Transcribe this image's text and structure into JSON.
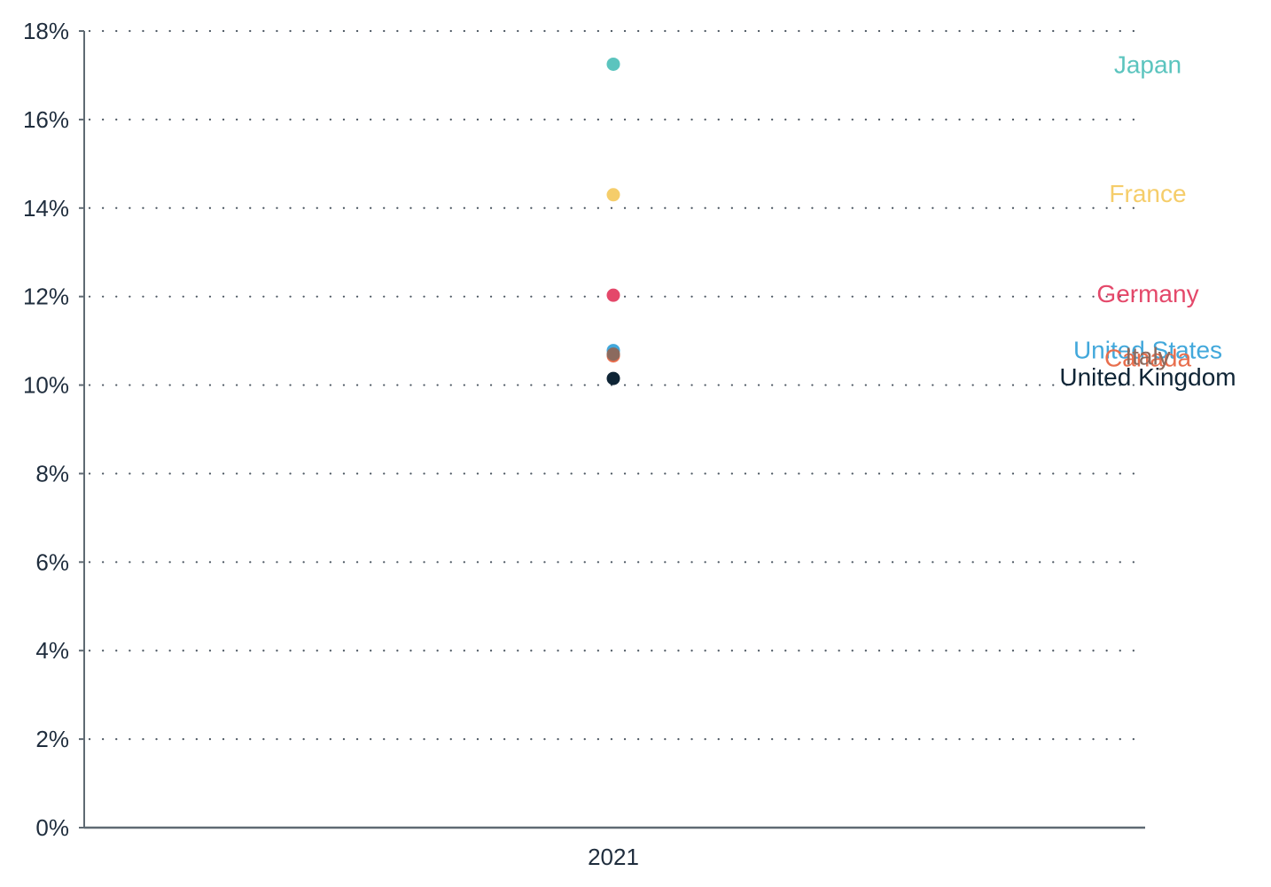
{
  "chart_data": {
    "type": "scatter",
    "title": "",
    "xlabel": "",
    "ylabel": "",
    "categories": [
      "2021"
    ],
    "ylim": [
      0,
      18
    ],
    "y_ticks": [
      0,
      2,
      4,
      6,
      8,
      10,
      12,
      14,
      16,
      18
    ],
    "y_tick_labels": [
      "0%",
      "2%",
      "4%",
      "6%",
      "8%",
      "10%",
      "12%",
      "14%",
      "16%",
      "18%"
    ],
    "grid": "horizontal dotted",
    "legend": "none (series labels at right end of plot)",
    "series": [
      {
        "name": "Japan",
        "values": [
          17.25
        ],
        "color": "#5bc4be"
      },
      {
        "name": "France",
        "values": [
          14.3
        ],
        "color": "#f5cd6a"
      },
      {
        "name": "Germany",
        "values": [
          12.03
        ],
        "color": "#e4486a"
      },
      {
        "name": "United States",
        "values": [
          10.78
        ],
        "color": "#42a8db"
      },
      {
        "name": "Canada",
        "values": [
          10.66
        ],
        "color": "#e86e4d"
      },
      {
        "name": "Italy",
        "values": [
          10.7
        ],
        "color": "#8b6a5e"
      },
      {
        "name": "United Kingdom",
        "values": [
          10.15
        ],
        "color": "#0f2536"
      }
    ]
  }
}
